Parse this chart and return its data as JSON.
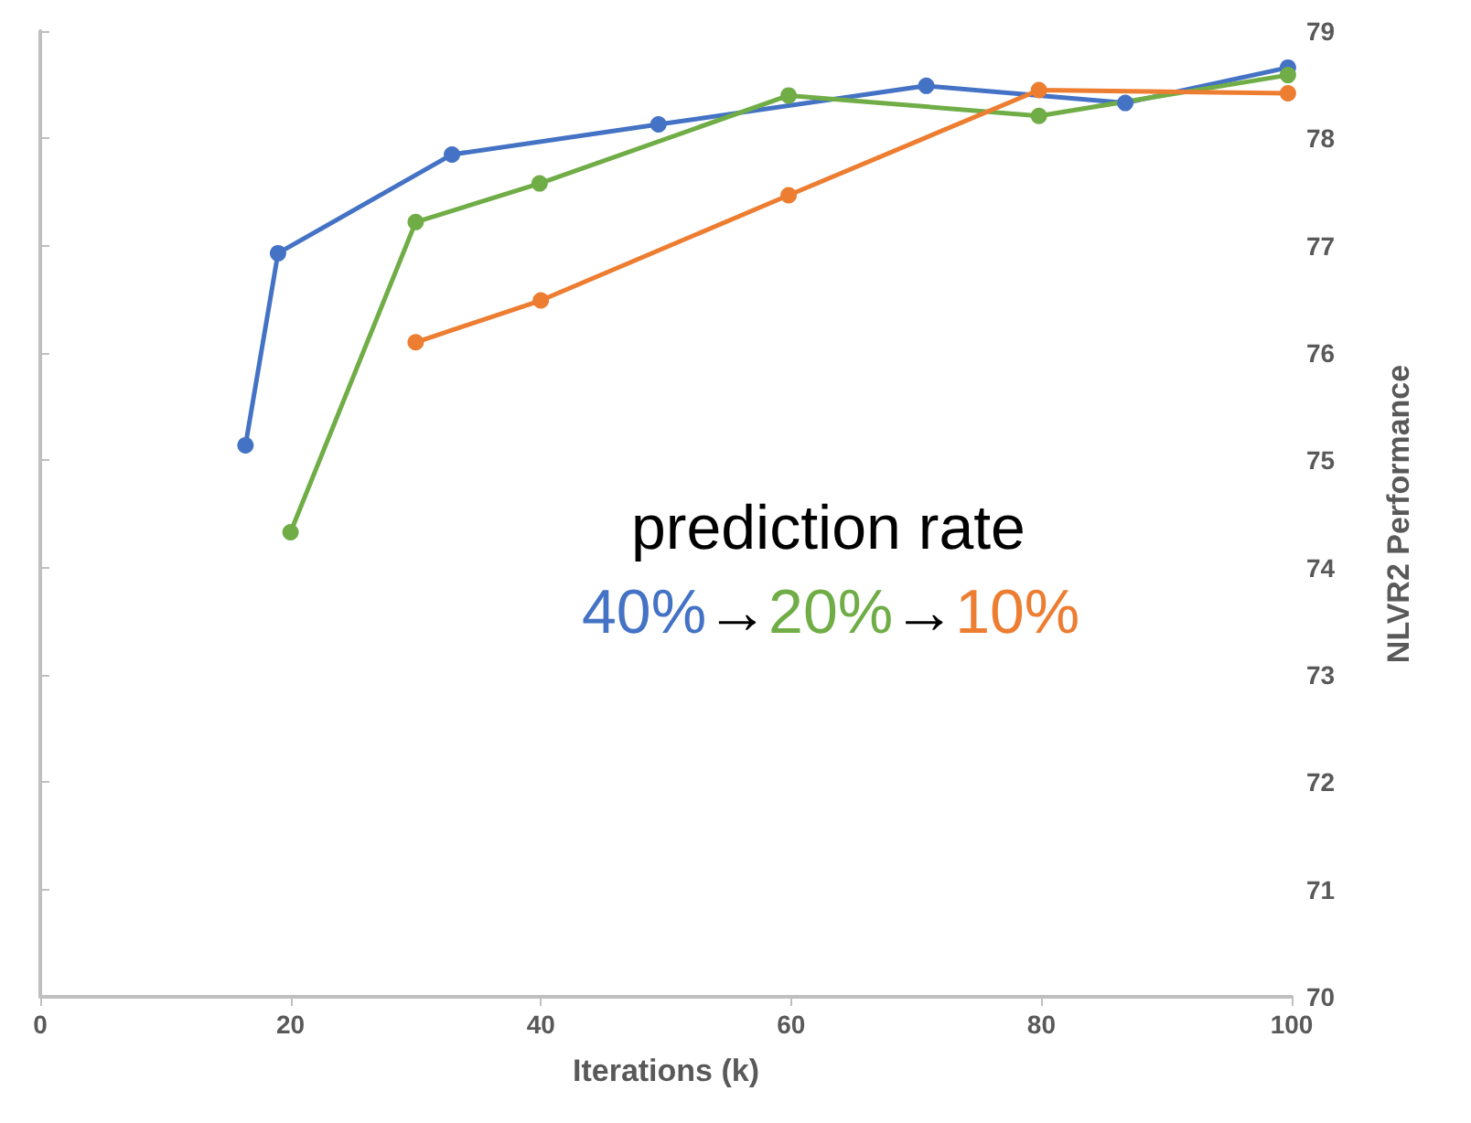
{
  "chart_data": {
    "type": "line",
    "xlabel": "Iterations (k)",
    "ylabel": "NLVR2 Performance",
    "xlim": [
      0,
      100
    ],
    "xticks": [
      0,
      20,
      40,
      60,
      80,
      100
    ],
    "ylim": [
      70,
      79
    ],
    "yticks": [
      70,
      71,
      72,
      73,
      74,
      75,
      76,
      77,
      78,
      79
    ],
    "series": [
      {
        "color": "#4472c4",
        "x": [
          16.4,
          19.0,
          32.9,
          49.4,
          70.8,
          86.7,
          99.7
        ],
        "values": [
          75.14,
          76.93,
          77.85,
          78.13,
          78.49,
          78.33,
          78.66
        ]
      },
      {
        "color": "#70ad47",
        "x": [
          20.0,
          30.0,
          39.9,
          59.8,
          79.8,
          99.7
        ],
        "values": [
          74.33,
          77.22,
          77.58,
          78.4,
          78.21,
          78.59
        ]
      },
      {
        "color": "#ed7d31",
        "x": [
          30.0,
          40.0,
          59.8,
          79.8,
          99.7
        ],
        "values": [
          76.1,
          76.49,
          77.47,
          78.45,
          78.42
        ]
      }
    ],
    "annotations": [
      "prediction rate",
      "40%→20%→10%"
    ],
    "marker": "circle",
    "line_style": "solid",
    "grid": false
  }
}
